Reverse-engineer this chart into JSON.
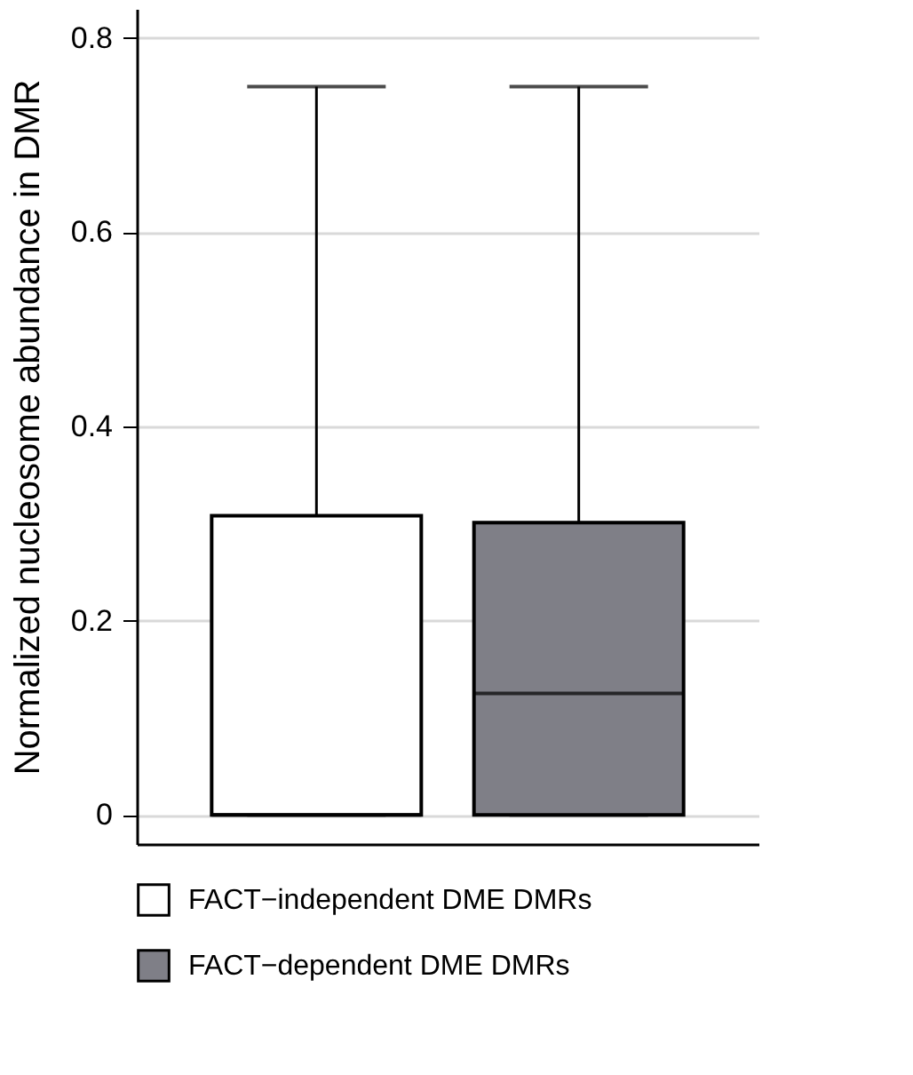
{
  "chart_data": {
    "type": "box",
    "ylabel": "Normalized nucleosome abundance in DMR",
    "categories": [
      null,
      null
    ],
    "series": [
      {
        "name": "FACT−independent DME DMRs",
        "color": "#ffffff",
        "boxes": [
          {
            "low": 0,
            "q1": 0,
            "median": 0,
            "q3": 0.308,
            "high": 0.75
          },
          null
        ]
      },
      {
        "name": "FACT−dependent DME DMRs",
        "color": "#7f7f87",
        "boxes": [
          null,
          {
            "low": 0,
            "q1": 0,
            "median": 0.125,
            "q3": 0.301,
            "high": 0.75
          }
        ]
      }
    ],
    "ylim": [
      -0.03,
      0.83
    ],
    "yticks": [
      0,
      0.2,
      0.4,
      0.6,
      0.8
    ],
    "grid": "y",
    "legend": "bottom",
    "tick_labels": "y"
  }
}
